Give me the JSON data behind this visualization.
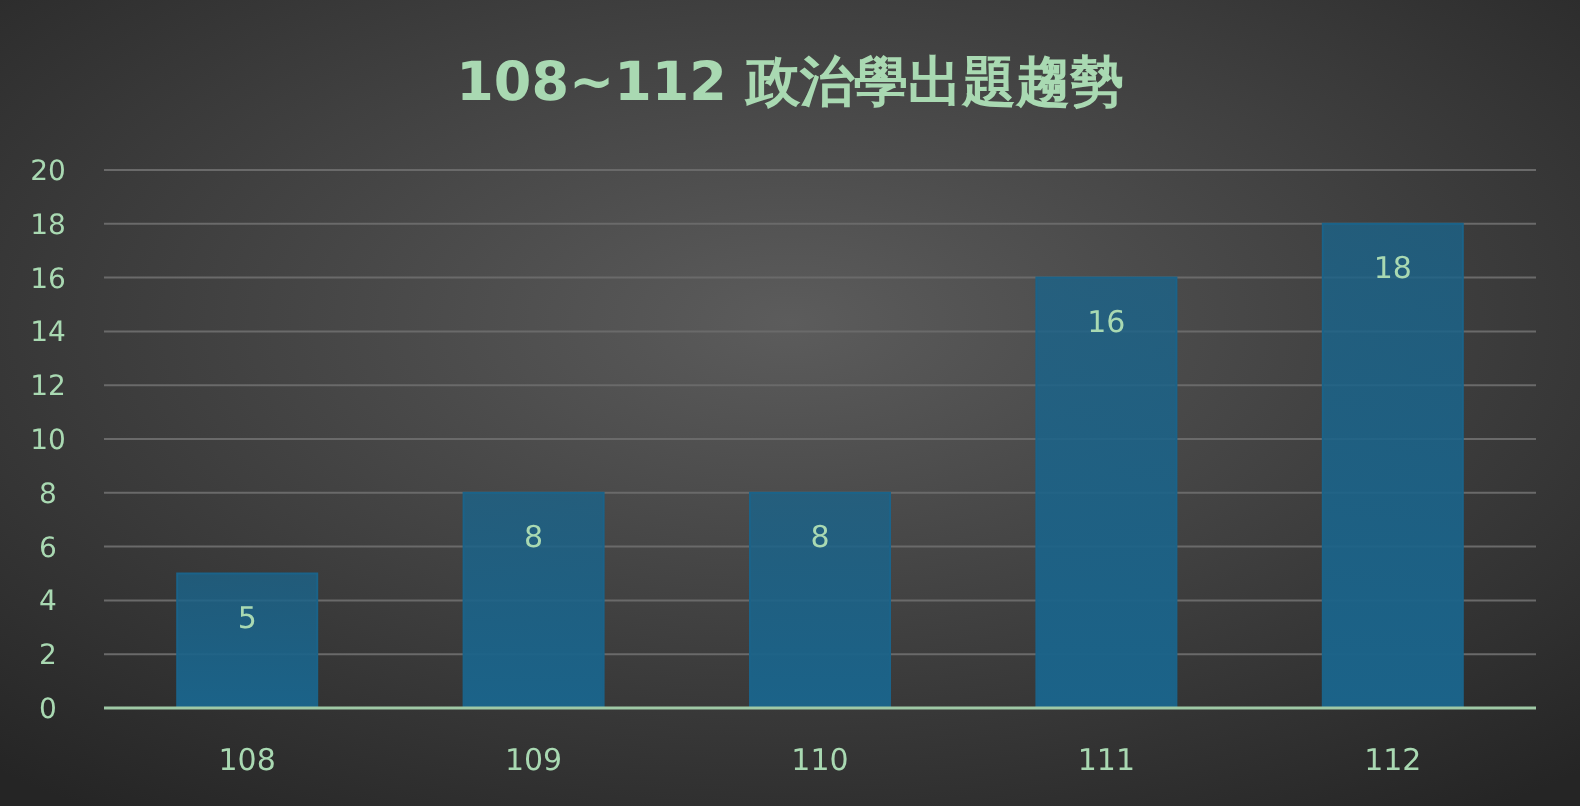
{
  "chart_data": {
    "type": "bar",
    "title": "108~112 政治學出題趨勢",
    "categories": [
      "108",
      "109",
      "110",
      "111",
      "112"
    ],
    "values": [
      5,
      8,
      8,
      16,
      18
    ],
    "color": "#1b6389",
    "ylim": [
      0,
      20
    ],
    "yticks": [
      0,
      2,
      4,
      6,
      8,
      10,
      12,
      14,
      16,
      18,
      20
    ],
    "grid": "y",
    "data_labels": true
  }
}
